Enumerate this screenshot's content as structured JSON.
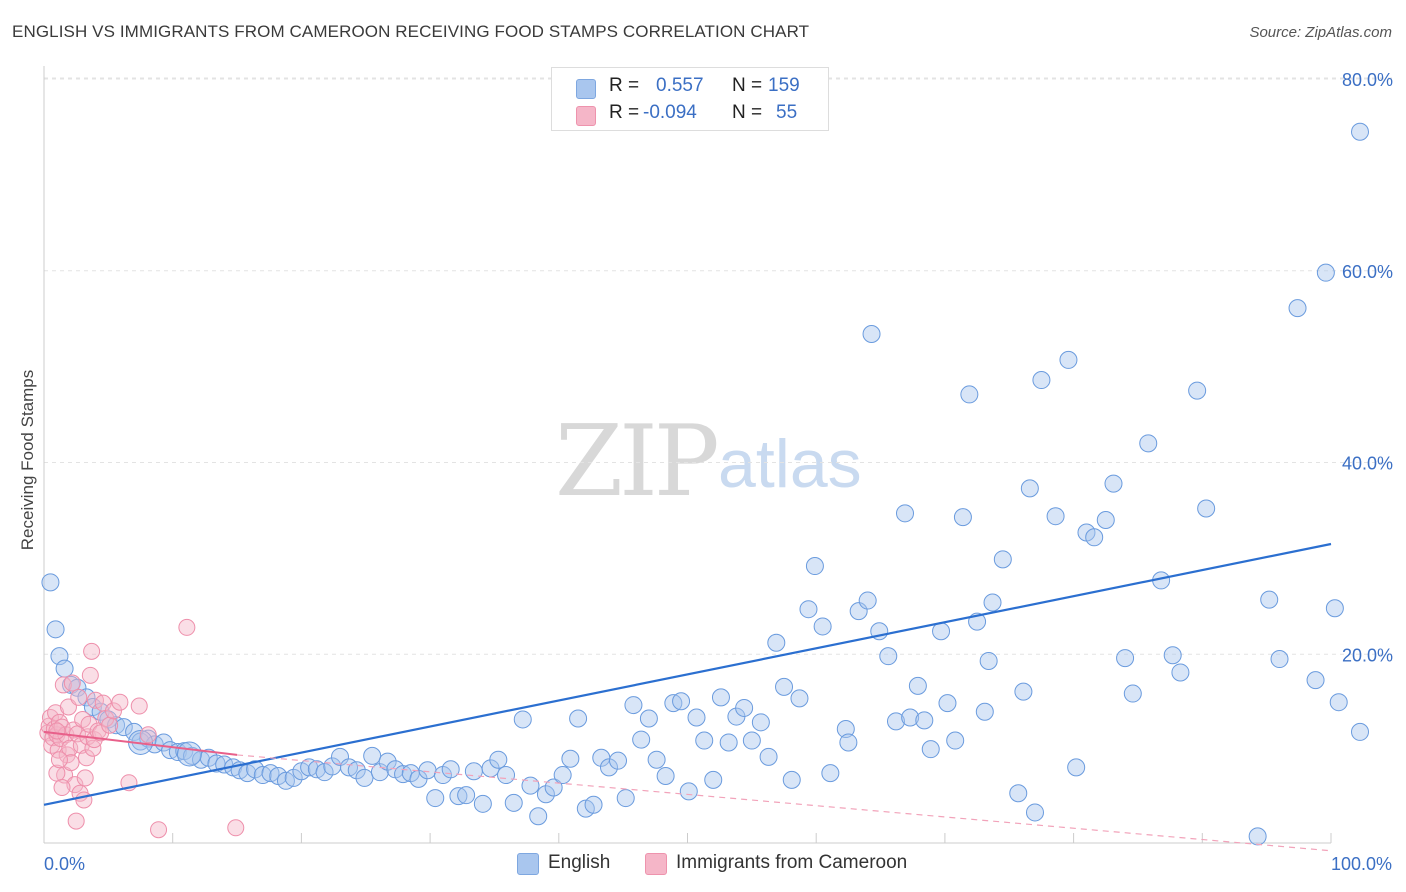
{
  "header": {
    "title": "ENGLISH VS IMMIGRANTS FROM CAMEROON RECEIVING FOOD STAMPS CORRELATION CHART",
    "source": "Source: ZipAtlas.com"
  },
  "watermark": {
    "zip": "ZIP",
    "atlas": "atlas"
  },
  "stats": [
    {
      "r_label": "R =",
      "r_value": "0.557",
      "n_label": "N =",
      "n_value": "159",
      "color": "#a9c6ee"
    },
    {
      "r_label": "R =",
      "r_value": "-0.094",
      "n_label": "N =",
      "n_value": "55",
      "color": "#f5b6c8"
    }
  ],
  "legend": [
    {
      "label": "English",
      "color": "#a9c6ee"
    },
    {
      "label": "Immigrants from Cameroon",
      "color": "#f5b6c8"
    }
  ],
  "chart_data": {
    "type": "scatter",
    "title": "ENGLISH VS IMMIGRANTS FROM CAMEROON RECEIVING FOOD STAMPS CORRELATION CHART",
    "xlabel": "",
    "ylabel": "Receiving Food Stamps",
    "xlim": [
      0,
      100
    ],
    "ylim": [
      0,
      85
    ],
    "x_tick_labels": [
      "0.0%",
      "100.0%"
    ],
    "y_ticks": [
      20,
      40,
      60,
      80
    ],
    "y_tick_labels": [
      "20.0%",
      "40.0%",
      "60.0%",
      "80.0%"
    ],
    "grid": true,
    "legend_position": "bottom-center",
    "colors": {
      "english": "#6a9bde",
      "cameroon": "#ee8fab",
      "english_line": "#2b6fd0",
      "cameroon_line": "#e8608a"
    },
    "series": [
      {
        "name": "English",
        "trend": {
          "x": [
            0,
            100
          ],
          "y": [
            4.3,
            31.5
          ],
          "style": "solid"
        },
        "points": [
          [
            0.5,
            27.5
          ],
          [
            0.9,
            22.6
          ],
          [
            1.2,
            19.8
          ],
          [
            1.6,
            18.5
          ],
          [
            2.1,
            16.8
          ],
          [
            2.6,
            16.5
          ],
          [
            3.3,
            15.5
          ],
          [
            3.8,
            14.5
          ],
          [
            4.4,
            14.0
          ],
          [
            5.0,
            13.2
          ],
          [
            5.6,
            12.6
          ],
          [
            6.2,
            12.4
          ],
          [
            7.0,
            11.9
          ],
          [
            7.5,
            10.9
          ],
          [
            8.1,
            11.2
          ],
          [
            8.6,
            10.6
          ],
          [
            9.3,
            10.8
          ],
          [
            9.8,
            10.0
          ],
          [
            10.4,
            9.8
          ],
          [
            10.9,
            9.9
          ],
          [
            11.5,
            9.4
          ],
          [
            12.2,
            9.0
          ],
          [
            12.8,
            9.2
          ],
          [
            13.4,
            8.6
          ],
          [
            14.0,
            8.5
          ],
          [
            14.7,
            8.2
          ],
          [
            15.2,
            7.9
          ],
          [
            15.8,
            7.6
          ],
          [
            16.4,
            8.0
          ],
          [
            17.0,
            7.4
          ],
          [
            17.6,
            7.6
          ],
          [
            18.2,
            7.3
          ],
          [
            18.8,
            6.8
          ],
          [
            19.4,
            7.1
          ],
          [
            20.0,
            7.8
          ],
          [
            20.6,
            8.2
          ],
          [
            21.2,
            8.0
          ],
          [
            21.8,
            7.7
          ],
          [
            22.4,
            8.3
          ],
          [
            23.0,
            9.3
          ],
          [
            23.7,
            8.2
          ],
          [
            24.3,
            7.9
          ],
          [
            24.9,
            7.1
          ],
          [
            25.5,
            9.4
          ],
          [
            26.1,
            7.7
          ],
          [
            26.7,
            8.8
          ],
          [
            27.3,
            8.0
          ],
          [
            27.9,
            7.5
          ],
          [
            28.5,
            7.6
          ],
          [
            29.1,
            7.0
          ],
          [
            29.8,
            7.9
          ],
          [
            30.4,
            5.0
          ],
          [
            31.0,
            7.4
          ],
          [
            31.6,
            8.0
          ],
          [
            32.2,
            5.2
          ],
          [
            32.8,
            5.3
          ],
          [
            33.4,
            7.8
          ],
          [
            34.1,
            4.4
          ],
          [
            34.7,
            8.1
          ],
          [
            35.3,
            9.0
          ],
          [
            35.9,
            7.4
          ],
          [
            36.5,
            4.5
          ],
          [
            37.2,
            13.2
          ],
          [
            37.8,
            6.3
          ],
          [
            38.4,
            3.1
          ],
          [
            39.0,
            5.4
          ],
          [
            39.6,
            6.1
          ],
          [
            40.3,
            7.4
          ],
          [
            40.9,
            9.1
          ],
          [
            41.5,
            13.3
          ],
          [
            42.1,
            3.9
          ],
          [
            42.7,
            4.3
          ],
          [
            43.3,
            9.2
          ],
          [
            43.9,
            8.2
          ],
          [
            44.6,
            8.9
          ],
          [
            45.2,
            5.0
          ],
          [
            45.8,
            14.7
          ],
          [
            46.4,
            11.1
          ],
          [
            47.0,
            13.3
          ],
          [
            47.6,
            9.0
          ],
          [
            48.3,
            7.3
          ],
          [
            48.9,
            14.9
          ],
          [
            49.5,
            15.1
          ],
          [
            50.1,
            5.7
          ],
          [
            50.7,
            13.4
          ],
          [
            51.3,
            11.0
          ],
          [
            52.0,
            6.9
          ],
          [
            52.6,
            15.5
          ],
          [
            53.2,
            10.8
          ],
          [
            53.8,
            13.5
          ],
          [
            54.4,
            14.4
          ],
          [
            55.0,
            11.0
          ],
          [
            55.7,
            12.9
          ],
          [
            56.3,
            9.3
          ],
          [
            56.9,
            21.2
          ],
          [
            57.5,
            16.6
          ],
          [
            58.1,
            6.9
          ],
          [
            58.7,
            15.4
          ],
          [
            59.4,
            24.7
          ],
          [
            59.9,
            29.2
          ],
          [
            60.5,
            22.9
          ],
          [
            61.1,
            7.6
          ],
          [
            62.3,
            12.2
          ],
          [
            62.5,
            10.8
          ],
          [
            63.3,
            24.5
          ],
          [
            64.0,
            25.6
          ],
          [
            64.3,
            53.4
          ],
          [
            64.9,
            22.4
          ],
          [
            65.6,
            19.8
          ],
          [
            66.2,
            13.0
          ],
          [
            66.9,
            34.7
          ],
          [
            67.3,
            13.4
          ],
          [
            67.9,
            16.7
          ],
          [
            68.4,
            13.1
          ],
          [
            68.9,
            10.1
          ],
          [
            69.7,
            22.4
          ],
          [
            70.2,
            14.9
          ],
          [
            70.8,
            11.0
          ],
          [
            71.4,
            34.3
          ],
          [
            71.9,
            47.1
          ],
          [
            72.5,
            23.4
          ],
          [
            73.1,
            14.0
          ],
          [
            73.4,
            19.3
          ],
          [
            73.7,
            25.4
          ],
          [
            74.5,
            29.9
          ],
          [
            75.7,
            5.5
          ],
          [
            76.1,
            16.1
          ],
          [
            76.6,
            37.3
          ],
          [
            77.0,
            3.5
          ],
          [
            77.5,
            48.6
          ],
          [
            78.6,
            34.4
          ],
          [
            79.6,
            50.7
          ],
          [
            80.2,
            8.2
          ],
          [
            81.0,
            32.7
          ],
          [
            81.6,
            32.2
          ],
          [
            82.5,
            34.0
          ],
          [
            83.1,
            37.8
          ],
          [
            84.0,
            19.6
          ],
          [
            84.6,
            15.9
          ],
          [
            85.8,
            42.0
          ],
          [
            86.8,
            27.7
          ],
          [
            87.7,
            19.9
          ],
          [
            88.3,
            18.1
          ],
          [
            89.6,
            47.5
          ],
          [
            90.3,
            35.2
          ],
          [
            94.3,
            1.0
          ],
          [
            95.2,
            25.7
          ],
          [
            96.0,
            19.5
          ],
          [
            97.4,
            56.1
          ],
          [
            98.8,
            17.3
          ],
          [
            99.6,
            59.8
          ],
          [
            100.3,
            24.8
          ],
          [
            100.6,
            15.0
          ],
          [
            102.4,
            11.9
          ],
          [
            103.5,
            74.5
          ]
        ],
        "big_points": [
          [
            7.5,
            10.8
          ],
          [
            11.3,
            9.6
          ]
        ]
      },
      {
        "name": "Immigrants from Cameroon",
        "trend": {
          "x": [
            0,
            15
          ],
          "y": [
            11.9,
            9.5
          ],
          "style": "solid",
          "extension": {
            "x": [
              15,
              100
            ],
            "y": [
              9.5,
              -0.5
            ],
            "style": "dashed"
          }
        },
        "points": [
          [
            0.3,
            11.8
          ],
          [
            0.4,
            12.5
          ],
          [
            0.5,
            13.4
          ],
          [
            0.6,
            10.5
          ],
          [
            0.7,
            11.3
          ],
          [
            0.8,
            12.2
          ],
          [
            0.9,
            13.9
          ],
          [
            1.0,
            11.6
          ],
          [
            1.1,
            10.0
          ],
          [
            1.2,
            12.9
          ],
          [
            1.3,
            11.2
          ],
          [
            1.4,
            12.4
          ],
          [
            1.5,
            16.8
          ],
          [
            1.6,
            7.4
          ],
          [
            1.7,
            11.6
          ],
          [
            1.8,
            9.5
          ],
          [
            1.9,
            14.5
          ],
          [
            2.0,
            10.2
          ],
          [
            2.1,
            8.7
          ],
          [
            2.2,
            17.0
          ],
          [
            2.3,
            12.1
          ],
          [
            2.4,
            6.4
          ],
          [
            2.5,
            2.6
          ],
          [
            2.6,
            11.7
          ],
          [
            2.7,
            15.5
          ],
          [
            2.8,
            5.5
          ],
          [
            2.9,
            10.5
          ],
          [
            3.0,
            13.2
          ],
          [
            3.1,
            4.8
          ],
          [
            3.2,
            7.1
          ],
          [
            3.3,
            9.2
          ],
          [
            3.4,
            11.4
          ],
          [
            3.5,
            12.7
          ],
          [
            3.6,
            17.8
          ],
          [
            3.7,
            20.3
          ],
          [
            3.8,
            10.2
          ],
          [
            3.9,
            11.1
          ],
          [
            4.0,
            15.2
          ],
          [
            4.2,
            12.0
          ],
          [
            4.4,
            11.8
          ],
          [
            4.6,
            14.9
          ],
          [
            4.8,
            13.3
          ],
          [
            5.1,
            12.6
          ],
          [
            5.4,
            14.1
          ],
          [
            5.9,
            15.0
          ],
          [
            6.6,
            6.6
          ],
          [
            7.4,
            14.6
          ],
          [
            8.1,
            11.6
          ],
          [
            8.9,
            1.7
          ],
          [
            11.1,
            22.8
          ],
          [
            14.9,
            1.9
          ],
          [
            1.0,
            7.6
          ],
          [
            1.2,
            9.0
          ],
          [
            1.4,
            6.1
          ],
          [
            1.0,
            12.0
          ]
        ]
      }
    ]
  }
}
